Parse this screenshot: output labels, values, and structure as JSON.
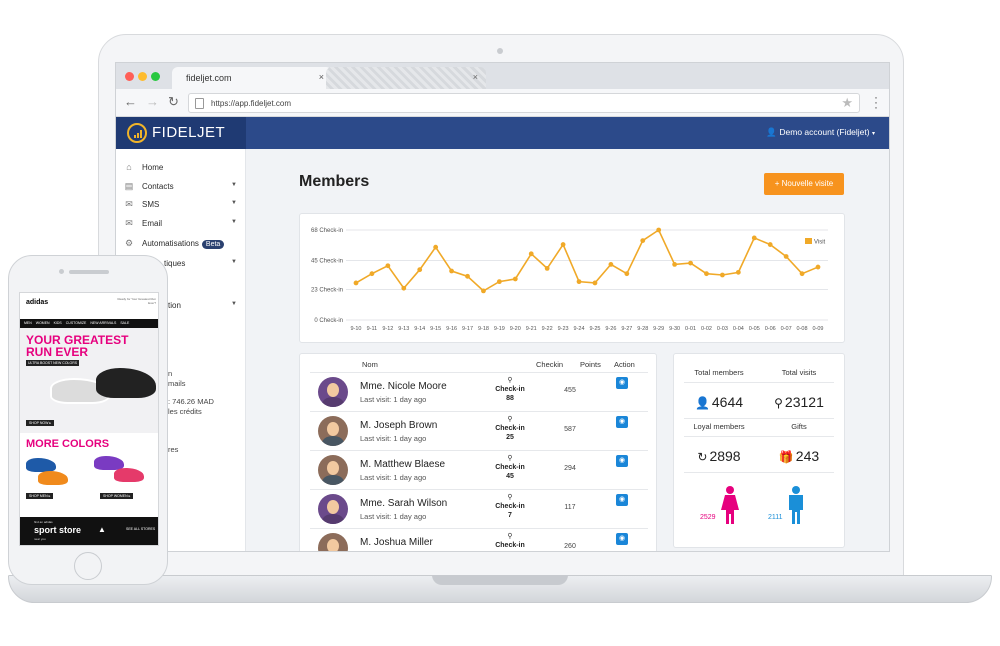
{
  "browser": {
    "tab_title": "fideljet.com",
    "tab_close": "×",
    "url": "https://app.fideljet.com"
  },
  "header": {
    "logo_text": "FIDELJET",
    "account": "Demo account (Fideljet)"
  },
  "sidebar": {
    "items": [
      {
        "label": "Home",
        "icon": "home-icon",
        "glyph": "⌂"
      },
      {
        "label": "Contacts",
        "icon": "book-icon",
        "glyph": "▤"
      },
      {
        "label": "SMS",
        "icon": "chat-icon",
        "glyph": "✉"
      },
      {
        "label": "Email",
        "icon": "envelope-icon",
        "glyph": "✉"
      },
      {
        "label": "Automatisations",
        "icon": "gears-icon",
        "glyph": "⚙",
        "badge": "Beta"
      },
      {
        "label": "tiques",
        "icon": "chart-icon",
        "glyph": "▥"
      },
      {
        "label": "tion",
        "icon": "settings-icon",
        "glyph": "⚙"
      }
    ],
    "fragments": [
      "n",
      "mails",
      ": 746.26 MAD",
      "les crédits",
      "res"
    ]
  },
  "main": {
    "title": "Members",
    "new_visit_button": "Nouvelle visite"
  },
  "chart_data": {
    "type": "line",
    "title": "",
    "xlabel": "",
    "ylabel": "",
    "legend": "Visit",
    "legend_position": "top-right",
    "y_ticks": [
      "0 Check-in",
      "23 Check-in",
      "45 Check-in",
      "68 Check-in"
    ],
    "ylim": [
      0,
      68
    ],
    "grid": true,
    "color": "#f0a928",
    "x": [
      "9-10",
      "9-11",
      "9-12",
      "9-13",
      "9-14",
      "9-15",
      "9-16",
      "9-17",
      "9-18",
      "9-19",
      "9-20",
      "9-21",
      "9-22",
      "9-23",
      "9-24",
      "9-25",
      "9-26",
      "9-27",
      "9-28",
      "9-29",
      "9-30",
      "0-01",
      "0-02",
      "0-03",
      "0-04",
      "0-05",
      "0-06",
      "0-07",
      "0-08",
      "0-09"
    ],
    "series": [
      {
        "name": "Visit",
        "values": [
          28,
          35,
          41,
          24,
          38,
          55,
          37,
          33,
          22,
          29,
          31,
          50,
          39,
          57,
          29,
          28,
          42,
          35,
          60,
          68,
          42,
          43,
          35,
          34,
          36,
          62,
          57,
          48,
          35,
          40
        ]
      }
    ]
  },
  "members_table": {
    "headers": {
      "name": "Nom",
      "checkin": "Checkin",
      "points": "Points",
      "action": "Action"
    },
    "rows": [
      {
        "name": "Mme. Nicole Moore",
        "last_visit": "Last visit: 1 day ago",
        "checkin_label": "Check-in",
        "checkin": "88",
        "points": "455",
        "gender": "female"
      },
      {
        "name": "M. Joseph Brown",
        "last_visit": "Last visit: 1 day ago",
        "checkin_label": "Check-in",
        "checkin": "25",
        "points": "587",
        "gender": "male"
      },
      {
        "name": "M. Matthew Blaese",
        "last_visit": "Last visit: 1 day ago",
        "checkin_label": "Check-in",
        "checkin": "45",
        "points": "294",
        "gender": "male"
      },
      {
        "name": "Mme. Sarah Wilson",
        "last_visit": "Last visit: 1 day ago",
        "checkin_label": "Check-in",
        "checkin": "7",
        "points": "117",
        "gender": "female"
      },
      {
        "name": "M. Joshua Miller",
        "last_visit": "",
        "checkin_label": "Check-in",
        "checkin": "",
        "points": "260",
        "gender": "male"
      }
    ]
  },
  "stats": {
    "total_members_label": "Total members",
    "total_members": "4644",
    "total_visits_label": "Total visits",
    "total_visits": "23121",
    "loyal_members_label": "Loyal members",
    "loyal_members": "2898",
    "gifts_label": "Gifts",
    "gifts": "243",
    "female_count": "2529",
    "male_count": "2111",
    "female_color": "#e6007e",
    "male_color": "#1a8fd8"
  },
  "phone_ad": {
    "brand": "adidas",
    "note": "Ready for Your Greatest Run Ever?",
    "nav": [
      "MEN",
      "WOMEN",
      "KIDS",
      "CUSTOMIZE",
      "NEW ARRIVALS",
      "SALE"
    ],
    "headline": "YOUR GREATEST RUN EVER",
    "subline": "ULTRA BOOST NEW COLORS",
    "shop_button": "SHOP NOW ▸",
    "colors_headline": "MORE COLORS",
    "shop_men": "SHOP MEN ▸",
    "shop_women": "SHOP WOMEN ▸",
    "store_pre": "find an adidas",
    "store": "sport store",
    "store_post": "near you",
    "see_all": "SEE ALL STORES"
  }
}
